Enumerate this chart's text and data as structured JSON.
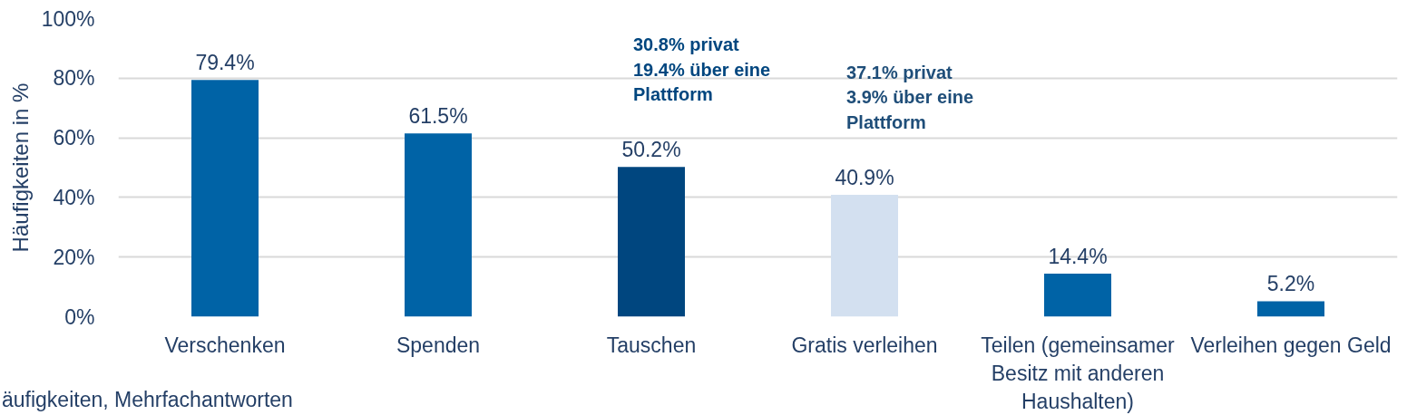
{
  "chart_data": {
    "type": "bar",
    "ylabel": "Häufigkeiten in %",
    "categories": [
      "Verschenken",
      "Spenden",
      "Tauschen",
      "Gratis verleihen",
      "Teilen (gemeinsamer Besitz mit anderen Haushalten)",
      "Verleihen gegen Geld"
    ],
    "values": [
      79.4,
      61.5,
      50.2,
      40.9,
      14.4,
      5.2
    ],
    "colors": [
      "#0063a6",
      "#0063a6",
      "#00467f",
      "#d3e0f0",
      "#0063a6",
      "#0063a6"
    ],
    "value_labels": [
      "79.4%",
      "61.5%",
      "50.2%",
      "40.9%",
      "14.4%",
      "5.2%"
    ],
    "ylim": [
      0,
      100
    ],
    "yticks": [
      {
        "value": 0,
        "label": "0%"
      },
      {
        "value": 20,
        "label": "20%"
      },
      {
        "value": 40,
        "label": "40%"
      },
      {
        "value": 60,
        "label": "60%"
      },
      {
        "value": 80,
        "label": "80%"
      },
      {
        "value": 100,
        "label": "100%"
      }
    ],
    "grid": "y",
    "annotations": [
      "30.8% privat\n19.4% über eine Plattform",
      "37.1% privat\n3.9% über eine Plattform",
      "äufigkeiten, Mehrfachantworten"
    ]
  }
}
